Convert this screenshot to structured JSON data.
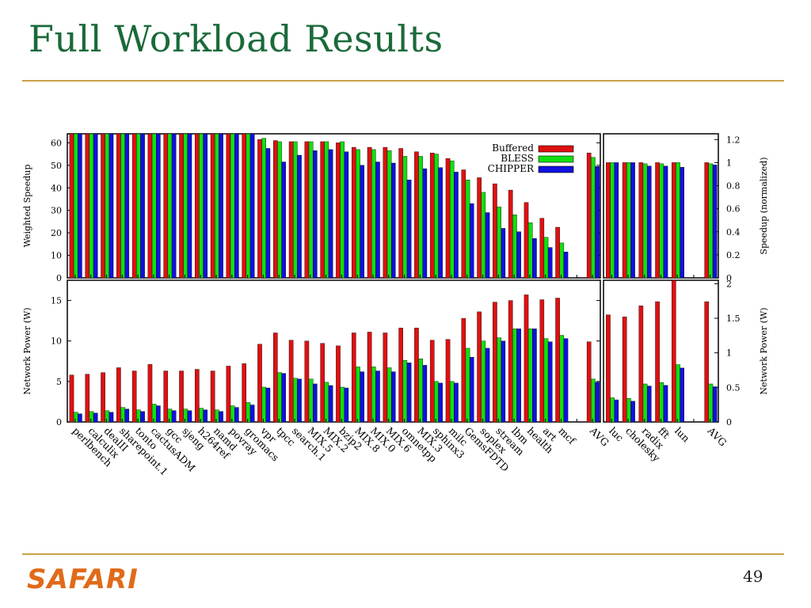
{
  "slide": {
    "title": "Full Workload Results",
    "logo": "SAFARI",
    "page_number": "49"
  },
  "colors": {
    "Buffered": "#e01010",
    "BLESS": "#10e010",
    "CHIPPER": "#1010e0"
  },
  "chart_data": [
    {
      "type": "bar",
      "panel": "top-left",
      "ylabel": "Weighted Speedup",
      "ylim": [
        0,
        64
      ],
      "yticks": [
        0,
        10,
        20,
        30,
        40,
        50,
        60
      ],
      "legend_position": "top-right",
      "categories": [
        "perlbench",
        "calculix",
        "dealII",
        "sharepoint.1",
        "tonto",
        "cactusADM",
        "gcc",
        "sjeng",
        "h264ref",
        "namd",
        "povray",
        "gromacs",
        "vpr",
        "tpcc",
        "search.1",
        "MIX.5",
        "MIX.2",
        "bzip2",
        "MIX.8",
        "MIX.0",
        "MIX.6",
        "omnetpp",
        "MIX.3",
        "sphinx3",
        "milc",
        "GemsFDTD",
        "soplex",
        "stream",
        "lbm",
        "health",
        "art",
        "mcf",
        "",
        "AVG"
      ],
      "series": [
        {
          "name": "Buffered",
          "values": [
            64,
            64,
            64,
            64,
            64,
            64,
            64,
            64,
            64,
            64,
            64,
            64,
            61.5,
            61,
            60.5,
            60.5,
            60.5,
            60,
            58,
            58,
            58,
            57.5,
            56,
            55.5,
            53,
            48,
            44.5,
            41.8,
            39,
            33.5,
            26.5,
            22.5,
            null,
            55.5
          ]
        },
        {
          "name": "BLESS",
          "values": [
            64,
            64,
            64,
            64,
            64,
            64,
            64,
            64,
            64,
            64,
            64,
            64,
            62,
            60.5,
            60.5,
            60.5,
            60.5,
            60.5,
            57,
            57,
            56.5,
            54,
            54,
            55,
            52,
            43.5,
            38,
            31.5,
            28,
            24.5,
            18,
            15.5,
            null,
            53.5
          ]
        },
        {
          "name": "CHIPPER",
          "values": [
            64,
            64,
            64,
            64,
            64,
            64,
            64,
            64,
            64,
            64,
            64,
            64,
            57.5,
            51.5,
            54.5,
            56.5,
            57,
            56,
            50,
            51.5,
            51,
            43.5,
            48.5,
            49,
            47,
            33,
            29,
            22,
            20.5,
            17.5,
            13.5,
            11.5,
            null,
            49.5
          ]
        }
      ]
    },
    {
      "type": "bar",
      "panel": "top-right",
      "ylabel": "Speedup (normalized)",
      "ylim": [
        0,
        1.25
      ],
      "yticks": [
        0,
        0.2,
        0.4,
        0.6,
        0.8,
        1,
        1.2
      ],
      "categories": [
        "luc",
        "cholesky",
        "radix",
        "fft",
        "lun",
        "",
        "AVG"
      ],
      "series": [
        {
          "name": "Buffered",
          "values": [
            1.0,
            1.0,
            1.0,
            1.0,
            1.0,
            null,
            1.0
          ]
        },
        {
          "name": "BLESS",
          "values": [
            1.0,
            1.0,
            0.99,
            0.99,
            1.0,
            null,
            0.99
          ]
        },
        {
          "name": "CHIPPER",
          "values": [
            1.0,
            1.0,
            0.97,
            0.97,
            0.96,
            null,
            0.98
          ]
        }
      ]
    },
    {
      "type": "bar",
      "panel": "bottom-left",
      "ylabel": "Network Power (W)",
      "ylim": [
        0,
        17.5
      ],
      "yticks": [
        0,
        5,
        10,
        15
      ],
      "categories": [
        "perlbench",
        "calculix",
        "dealII",
        "sharepoint.1",
        "tonto",
        "cactusADM",
        "gcc",
        "sjeng",
        "h264ref",
        "namd",
        "povray",
        "gromacs",
        "vpr",
        "tpcc",
        "search.1",
        "MIX.5",
        "MIX.2",
        "bzip2",
        "MIX.8",
        "MIX.0",
        "MIX.6",
        "omnetpp",
        "MIX.3",
        "sphinx3",
        "milc",
        "GemsFDTD",
        "soplex",
        "stream",
        "lbm",
        "health",
        "art",
        "mcf",
        "",
        "AVG"
      ],
      "series": [
        {
          "name": "Buffered",
          "values": [
            5.8,
            5.9,
            6.1,
            6.7,
            6.3,
            7.1,
            6.3,
            6.3,
            6.5,
            6.3,
            6.9,
            7.2,
            9.6,
            11.0,
            10.1,
            10.0,
            9.7,
            9.4,
            11.0,
            11.1,
            11.0,
            11.6,
            11.6,
            10.1,
            10.2,
            12.8,
            13.6,
            14.8,
            15.0,
            15.7,
            15.1,
            15.3,
            null,
            9.9
          ]
        },
        {
          "name": "BLESS",
          "values": [
            1.2,
            1.3,
            1.4,
            1.8,
            1.5,
            2.2,
            1.6,
            1.6,
            1.7,
            1.5,
            2.0,
            2.4,
            4.3,
            6.1,
            5.4,
            5.3,
            4.9,
            4.3,
            6.8,
            6.8,
            6.7,
            7.6,
            7.8,
            5.0,
            5.0,
            9.1,
            10.0,
            10.4,
            11.5,
            11.5,
            10.3,
            10.7,
            null,
            5.3
          ]
        },
        {
          "name": "CHIPPER",
          "values": [
            1.0,
            1.1,
            1.2,
            1.6,
            1.3,
            2.0,
            1.4,
            1.4,
            1.5,
            1.3,
            1.8,
            2.1,
            4.2,
            6.0,
            5.3,
            4.7,
            4.5,
            4.2,
            6.2,
            6.3,
            6.2,
            7.3,
            7.0,
            4.8,
            4.8,
            8.0,
            9.1,
            10.0,
            11.5,
            11.5,
            9.9,
            10.3,
            null,
            4.9
          ]
        }
      ]
    },
    {
      "type": "bar",
      "panel": "bottom-right",
      "ylabel": "Network Power (W)",
      "ylim": [
        0,
        2.05
      ],
      "yticks": [
        0,
        0.5,
        1,
        1.5,
        2
      ],
      "categories": [
        "luc",
        "cholesky",
        "radix",
        "fft",
        "lun",
        "",
        "AVG"
      ],
      "xtick_labels": [
        "luc",
        "cholesky",
        "radix",
        "fft",
        "lun",
        "",
        "AVG"
      ],
      "series": [
        {
          "name": "Buffered",
          "values": [
            1.55,
            1.52,
            1.68,
            1.74,
            2.07,
            null,
            1.74
          ]
        },
        {
          "name": "BLESS",
          "values": [
            0.35,
            0.34,
            0.55,
            0.57,
            0.83,
            null,
            0.55
          ]
        },
        {
          "name": "CHIPPER",
          "values": [
            0.32,
            0.3,
            0.52,
            0.53,
            0.78,
            null,
            0.51
          ]
        }
      ]
    }
  ]
}
